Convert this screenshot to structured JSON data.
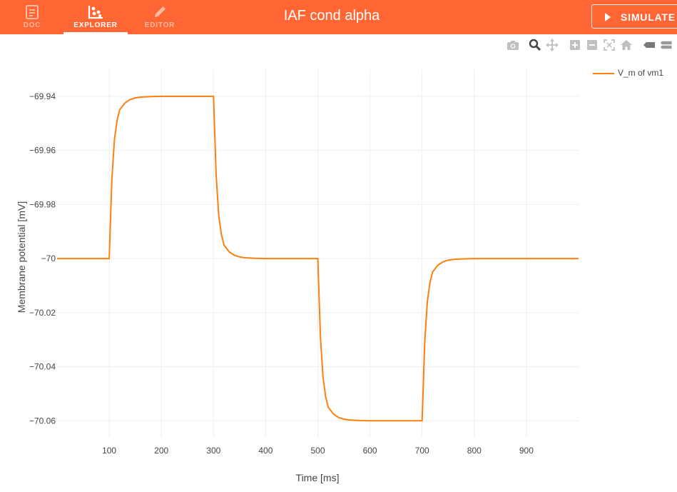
{
  "app": {
    "title": "IAF cond alpha",
    "tabs": [
      {
        "label": "DOC",
        "icon": "document-icon"
      },
      {
        "label": "EXPLORER",
        "icon": "scatter-icon"
      },
      {
        "label": "EDITOR",
        "icon": "pencil-icon"
      }
    ],
    "active_tab": "EXPLORER",
    "simulate_label": "SIMULATE",
    "colors": {
      "accent": "#ff6633",
      "trace": "#ff7f0e"
    }
  },
  "modebar": [
    "camera-icon",
    "zoom-icon",
    "pan-icon",
    "zoom-in-icon",
    "zoom-out-icon",
    "autoscale-icon",
    "home-icon",
    "hover-closest-icon",
    "hover-compare-icon"
  ],
  "chart_data": {
    "type": "line",
    "xlabel": "Time [ms]",
    "ylabel": "Membrane potential [mV]",
    "xlim": [
      0,
      1000
    ],
    "ylim": [
      -70.066,
      -69.93
    ],
    "xticks": [
      100,
      200,
      300,
      400,
      500,
      600,
      700,
      800,
      900
    ],
    "yticks": [
      -69.94,
      -69.96,
      -69.98,
      -70,
      -70.02,
      -70.04,
      -70.06
    ],
    "ytick_labels": [
      "−69.94",
      "−69.96",
      "−69.98",
      "−70",
      "−70.02",
      "−70.04",
      "−70.06"
    ],
    "grid": true,
    "legend_position": "top-right",
    "series": [
      {
        "name": "V_m of vm1",
        "color": "#ff7f0e",
        "x": [
          0,
          100,
          105,
          110,
          115,
          120,
          130,
          140,
          150,
          160,
          180,
          200,
          250,
          300,
          305,
          310,
          315,
          320,
          330,
          340,
          350,
          360,
          380,
          400,
          450,
          500,
          505,
          510,
          515,
          520,
          530,
          540,
          550,
          560,
          580,
          600,
          650,
          700,
          705,
          710,
          715,
          720,
          730,
          740,
          750,
          760,
          780,
          800,
          850,
          900,
          1000
        ],
        "y": [
          -70,
          -70,
          -69.971,
          -69.956,
          -69.949,
          -69.945,
          -69.9425,
          -69.9412,
          -69.9406,
          -69.9403,
          -69.9401,
          -69.94,
          -69.94,
          -69.94,
          -69.969,
          -69.984,
          -69.991,
          -69.995,
          -69.9975,
          -69.9988,
          -69.9994,
          -69.9997,
          -69.9999,
          -70,
          -70,
          -70,
          -70.029,
          -70.044,
          -70.051,
          -70.055,
          -70.0575,
          -70.0588,
          -70.0594,
          -70.0597,
          -70.0599,
          -70.06,
          -70.06,
          -70.06,
          -70.031,
          -70.016,
          -70.009,
          -70.005,
          -70.0025,
          -70.0012,
          -70.0006,
          -70.0003,
          -70.0001,
          -70,
          -70,
          -70,
          -70
        ]
      }
    ]
  }
}
